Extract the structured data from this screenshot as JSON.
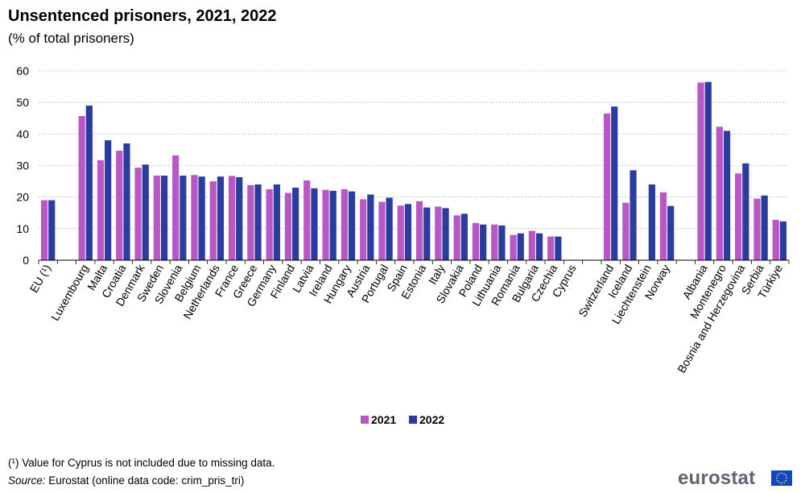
{
  "header": {
    "title": "Unsentenced prisoners, 2021, 2022",
    "subtitle": "(% of total prisoners)"
  },
  "footer": {
    "footnote": "(¹) Value for Cyprus is not included due to missing data.",
    "source_label": "Source:",
    "source_text": " Eurostat (online data code: crim_pris_tri)",
    "brand": "eurostat"
  },
  "colors": {
    "2021": "#b957c4",
    "2022": "#2a3c9e",
    "flag": "#0e47cb",
    "star": "#ffdd00"
  },
  "chart_data": {
    "type": "bar",
    "title": "Unsentenced prisoners, 2021, 2022",
    "subtitle": "(% of total prisoners)",
    "ylim": [
      0,
      60
    ],
    "yticks": [
      0,
      10,
      20,
      30,
      40,
      50,
      60
    ],
    "grid": true,
    "legend_position": "bottom-center",
    "categories": [
      "EU (¹)",
      "",
      "Luxembourg",
      "Malta",
      "Croatia",
      "Denmark",
      "Sweden",
      "Slovenia",
      "Belgium",
      "Netherlands",
      "France",
      "Greece",
      "Germany",
      "Finland",
      "Latvia",
      "Ireland",
      "Hungary",
      "Austria",
      "Portugal",
      "Spain",
      "Estonia",
      "Italy",
      "Slovakia",
      "Poland",
      "Lithuania",
      "Romania",
      "Bulgaria",
      "Czechia",
      "Cyprus",
      "",
      "Switzerland",
      "Iceland",
      "Liechtenstein",
      "Norway",
      "",
      "Albania",
      "Montenegro",
      "Bosnia and Herzegovina",
      "Serbia",
      "Türkiye"
    ],
    "series": [
      {
        "name": "2021",
        "values": [
          19.0,
          null,
          45.7,
          31.7,
          34.7,
          29.3,
          26.8,
          33.2,
          27.0,
          25.0,
          26.7,
          23.8,
          22.5,
          21.3,
          25.3,
          22.3,
          22.5,
          19.3,
          18.5,
          17.3,
          18.7,
          17.0,
          14.2,
          11.8,
          11.3,
          8.0,
          9.3,
          7.5,
          null,
          null,
          46.5,
          18.2,
          null,
          21.5,
          null,
          56.3,
          42.3,
          27.5,
          19.5,
          12.8
        ]
      },
      {
        "name": "2022",
        "values": [
          19.0,
          null,
          49.0,
          38.0,
          37.0,
          30.3,
          26.8,
          26.8,
          26.5,
          26.5,
          26.3,
          24.0,
          24.0,
          23.0,
          22.8,
          22.0,
          21.8,
          20.8,
          19.8,
          17.8,
          16.7,
          16.5,
          14.7,
          11.3,
          11.0,
          8.5,
          8.5,
          7.5,
          null,
          null,
          48.7,
          28.5,
          24.0,
          17.2,
          null,
          56.5,
          41.0,
          30.7,
          20.5,
          12.3
        ]
      }
    ]
  }
}
